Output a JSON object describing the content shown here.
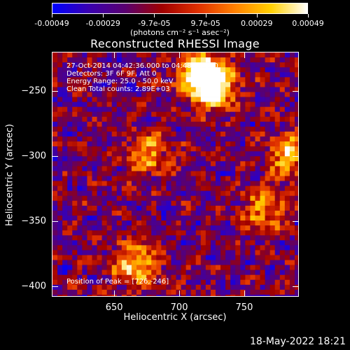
{
  "colorbar": {
    "ticks": [
      "-0.00049",
      "-0.00029",
      "-9.7e-05",
      "9.7e-05",
      "0.00029",
      "0.00049"
    ],
    "units": "(photons cm⁻² s⁻¹ asec⁻²)",
    "colors": [
      "#0000ff",
      "#3a00b0",
      "#5a0070",
      "#a00000",
      "#e03000",
      "#ff8000",
      "#ffd000",
      "#ffffff"
    ]
  },
  "chart_data": {
    "type": "heatmap",
    "title": "Reconstructed RHESSI Image",
    "xlabel": "Heliocentric X (arcsec)",
    "ylabel": "Heliocentric Y (arcsec)",
    "xlim": [
      602,
      792
    ],
    "ylim": [
      -408,
      -220
    ],
    "xticks": [
      650,
      700,
      750
    ],
    "yticks": [
      -250,
      -300,
      -350,
      -400
    ],
    "info_lines": [
      "27-Oct-2014 04:42:36.000 to 04:48:36.000",
      "Detectors: 3F 6F 9F, Att 0",
      "Energy Range: 25.0 - 50.0 keV",
      "Clean    Total counts: 2.89E+03"
    ],
    "peak_label": "Position of Peak = [726,-246]",
    "peak": [
      726,
      -246
    ],
    "hotspots": [
      {
        "x": 726,
        "y": -246,
        "intensity": 1.0
      },
      {
        "x": 716,
        "y": -236,
        "intensity": 0.9
      },
      {
        "x": 666,
        "y": -383,
        "intensity": 0.75
      },
      {
        "x": 785,
        "y": -298,
        "intensity": 0.7
      },
      {
        "x": 676,
        "y": -298,
        "intensity": 0.6
      },
      {
        "x": 765,
        "y": -340,
        "intensity": 0.55
      }
    ]
  },
  "timestamp": "18-May-2022 18:21"
}
